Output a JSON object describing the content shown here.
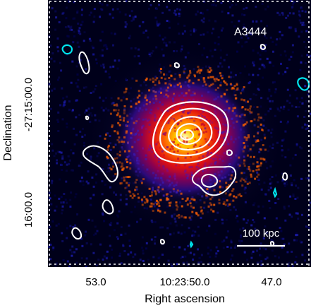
{
  "image": {
    "cluster_label": "A3444",
    "scale_bar_label": "100 kpc",
    "x_axis_label": "Right ascension",
    "y_axis_label": "Declination",
    "x_ticks": [
      "53.0",
      "10:23:50.0",
      "47.0"
    ],
    "y_ticks": [
      "-27:15:00.0",
      "16:00.0"
    ],
    "colors": {
      "background": "#00001a",
      "xray_peak": "#fff8c8",
      "xray_mid": "#ff3a00",
      "xray_outer": "#c0001a",
      "contour_white": "#ffffff",
      "contour_cyan": "#00e5ee",
      "frame_ticks": "#ffffff"
    }
  }
}
